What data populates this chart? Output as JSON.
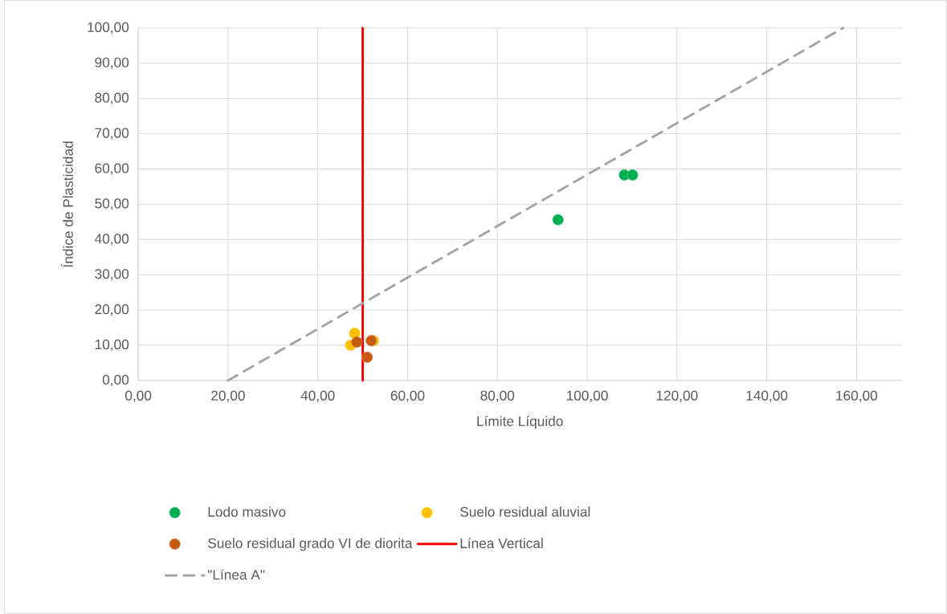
{
  "chart_data": {
    "type": "scatter",
    "xlabel": "Límite Líquido",
    "ylabel": "Índice de Plasticidad",
    "xlim": [
      0,
      170
    ],
    "ylim": [
      0,
      100
    ],
    "xticks": [
      {
        "value": 0,
        "label": "0,00"
      },
      {
        "value": 20,
        "label": "20,00"
      },
      {
        "value": 40,
        "label": "40,00"
      },
      {
        "value": 60,
        "label": "60,00"
      },
      {
        "value": 80,
        "label": "80,00"
      },
      {
        "value": 100,
        "label": "100,00"
      },
      {
        "value": 120,
        "label": "120,00"
      },
      {
        "value": 140,
        "label": "140,00"
      },
      {
        "value": 160,
        "label": "160,00"
      }
    ],
    "yticks": [
      {
        "value": 0,
        "label": "0,00"
      },
      {
        "value": 10,
        "label": "10,00"
      },
      {
        "value": 20,
        "label": "20,00"
      },
      {
        "value": 30,
        "label": "30,00"
      },
      {
        "value": 40,
        "label": "40,00"
      },
      {
        "value": 50,
        "label": "50,00"
      },
      {
        "value": 60,
        "label": "60,00"
      },
      {
        "value": 70,
        "label": "70,00"
      },
      {
        "value": 80,
        "label": "80,00"
      },
      {
        "value": 90,
        "label": "90,00"
      },
      {
        "value": 100,
        "label": "100,00"
      }
    ],
    "grid": true,
    "legend": "bottom",
    "series": [
      {
        "name": "Lodo masivo",
        "color": "#00b050",
        "marker": "circle",
        "x": [
          93.5,
          108.3,
          110.1
        ],
        "values": [
          45.6,
          58.3,
          58.3
        ]
      },
      {
        "name": "Suelo residual aluvial",
        "color": "#ffc000",
        "marker": "circle",
        "x": [
          48.2,
          47.3,
          52.4
        ],
        "values": [
          13.4,
          10.0,
          11.3
        ]
      },
      {
        "name": "Suelo residual grado VI de diorita",
        "color": "#c55a11",
        "marker": "circle",
        "x": [
          48.7,
          51.9,
          51.0
        ],
        "values": [
          10.9,
          11.3,
          6.6
        ]
      },
      {
        "name": "Línea Vertical",
        "type": "line",
        "color": "#ff0000",
        "line_style": "solid",
        "x": [
          50,
          50
        ],
        "values": [
          0,
          100
        ]
      },
      {
        "name": "\"Línea A\"",
        "type": "line",
        "color": "#a5a5a5",
        "line_style": "dashed",
        "x": [
          20,
          157
        ],
        "values": [
          0,
          100
        ]
      }
    ]
  }
}
